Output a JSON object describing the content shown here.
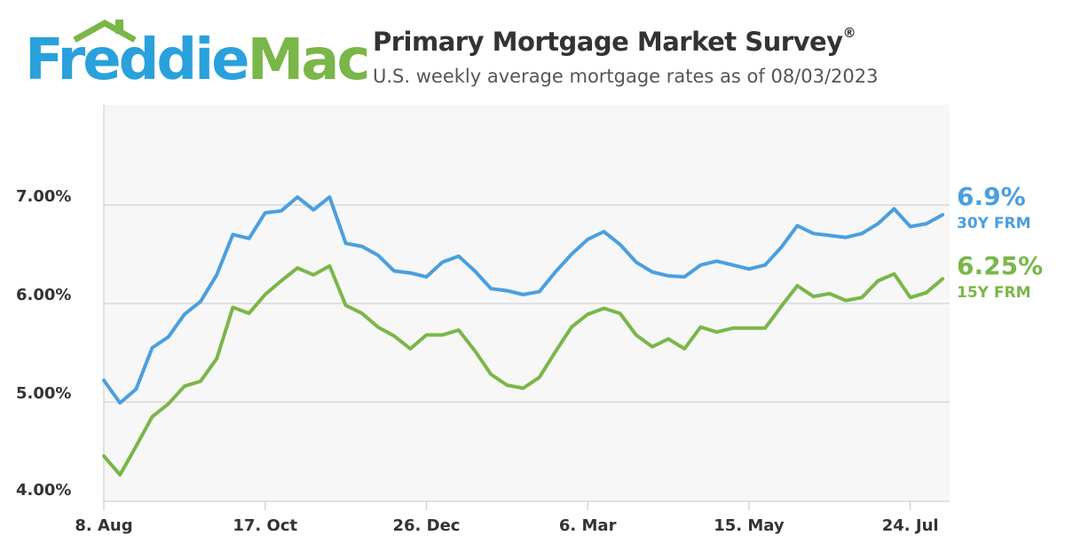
{
  "logo": {
    "word1": "Freddie",
    "word2": "Mac",
    "brand_blue": "#2aa1dc",
    "brand_green": "#7ab648"
  },
  "header": {
    "title": "Primary Mortgage Market Survey",
    "title_mark": "®",
    "subtitle": "U.S. weekly average mortgage rates as of 08/03/2023"
  },
  "chart_data": {
    "type": "line",
    "x_unit": "weekly (Thursdays)",
    "x": [
      "2022-08-04",
      "2022-08-11",
      "2022-08-18",
      "2022-08-25",
      "2022-09-01",
      "2022-09-08",
      "2022-09-15",
      "2022-09-22",
      "2022-09-29",
      "2022-10-06",
      "2022-10-13",
      "2022-10-20",
      "2022-10-27",
      "2022-11-03",
      "2022-11-10",
      "2022-11-17",
      "2022-11-23",
      "2022-12-01",
      "2022-12-08",
      "2022-12-15",
      "2022-12-22",
      "2022-12-29",
      "2023-01-05",
      "2023-01-12",
      "2023-01-19",
      "2023-01-26",
      "2023-02-02",
      "2023-02-09",
      "2023-02-16",
      "2023-02-23",
      "2023-03-02",
      "2023-03-09",
      "2023-03-16",
      "2023-03-23",
      "2023-03-30",
      "2023-04-06",
      "2023-04-13",
      "2023-04-20",
      "2023-04-27",
      "2023-05-04",
      "2023-05-11",
      "2023-05-18",
      "2023-05-25",
      "2023-06-01",
      "2023-06-08",
      "2023-06-15",
      "2023-06-22",
      "2023-06-29",
      "2023-07-06",
      "2023-07-13",
      "2023-07-20",
      "2023-07-27",
      "2023-08-03"
    ],
    "series": [
      {
        "name": "30Y FRM",
        "color": "#4a9fe0",
        "values": [
          5.22,
          4.99,
          5.13,
          5.55,
          5.66,
          5.89,
          6.02,
          6.29,
          6.7,
          6.66,
          6.92,
          6.94,
          7.08,
          6.95,
          7.08,
          6.61,
          6.58,
          6.49,
          6.33,
          6.31,
          6.27,
          6.42,
          6.48,
          6.33,
          6.15,
          6.13,
          6.09,
          6.12,
          6.32,
          6.5,
          6.65,
          6.73,
          6.6,
          6.42,
          6.32,
          6.28,
          6.27,
          6.39,
          6.43,
          6.39,
          6.35,
          6.39,
          6.57,
          6.79,
          6.71,
          6.69,
          6.67,
          6.71,
          6.81,
          6.96,
          6.78,
          6.81,
          6.9
        ]
      },
      {
        "name": "15Y FRM",
        "color": "#7ab648",
        "values": [
          4.45,
          4.26,
          4.55,
          4.85,
          4.98,
          5.16,
          5.21,
          5.44,
          5.96,
          5.9,
          6.09,
          6.23,
          6.36,
          6.29,
          6.38,
          5.98,
          5.9,
          5.76,
          5.67,
          5.54,
          5.68,
          5.68,
          5.73,
          5.52,
          5.28,
          5.17,
          5.14,
          5.25,
          5.51,
          5.76,
          5.89,
          5.95,
          5.9,
          5.68,
          5.56,
          5.64,
          5.54,
          5.76,
          5.71,
          5.75,
          5.75,
          5.75,
          5.97,
          6.18,
          6.07,
          6.1,
          6.03,
          6.06,
          6.23,
          6.3,
          6.06,
          6.11,
          6.25
        ]
      }
    ],
    "end_labels": [
      {
        "value": "6.9%",
        "name": "30Y FRM",
        "color": "#4a9fe0"
      },
      {
        "value": "6.25%",
        "name": "15Y FRM",
        "color": "#7ab648"
      }
    ],
    "yticks": [
      "4.00%",
      "5.00%",
      "6.00%",
      "7.00%"
    ],
    "ytick_values": [
      4,
      5,
      6,
      7
    ],
    "ylim": [
      4,
      7.2
    ],
    "xticks": [
      {
        "label": "8. Aug",
        "index": 0
      },
      {
        "label": "17. Oct",
        "index": 10
      },
      {
        "label": "26. Dec",
        "index": 20
      },
      {
        "label": "6. Mar",
        "index": 30
      },
      {
        "label": "15. May",
        "index": 40
      },
      {
        "label": "24. Jul",
        "index": 50
      }
    ],
    "grid": true,
    "legend": "right"
  }
}
